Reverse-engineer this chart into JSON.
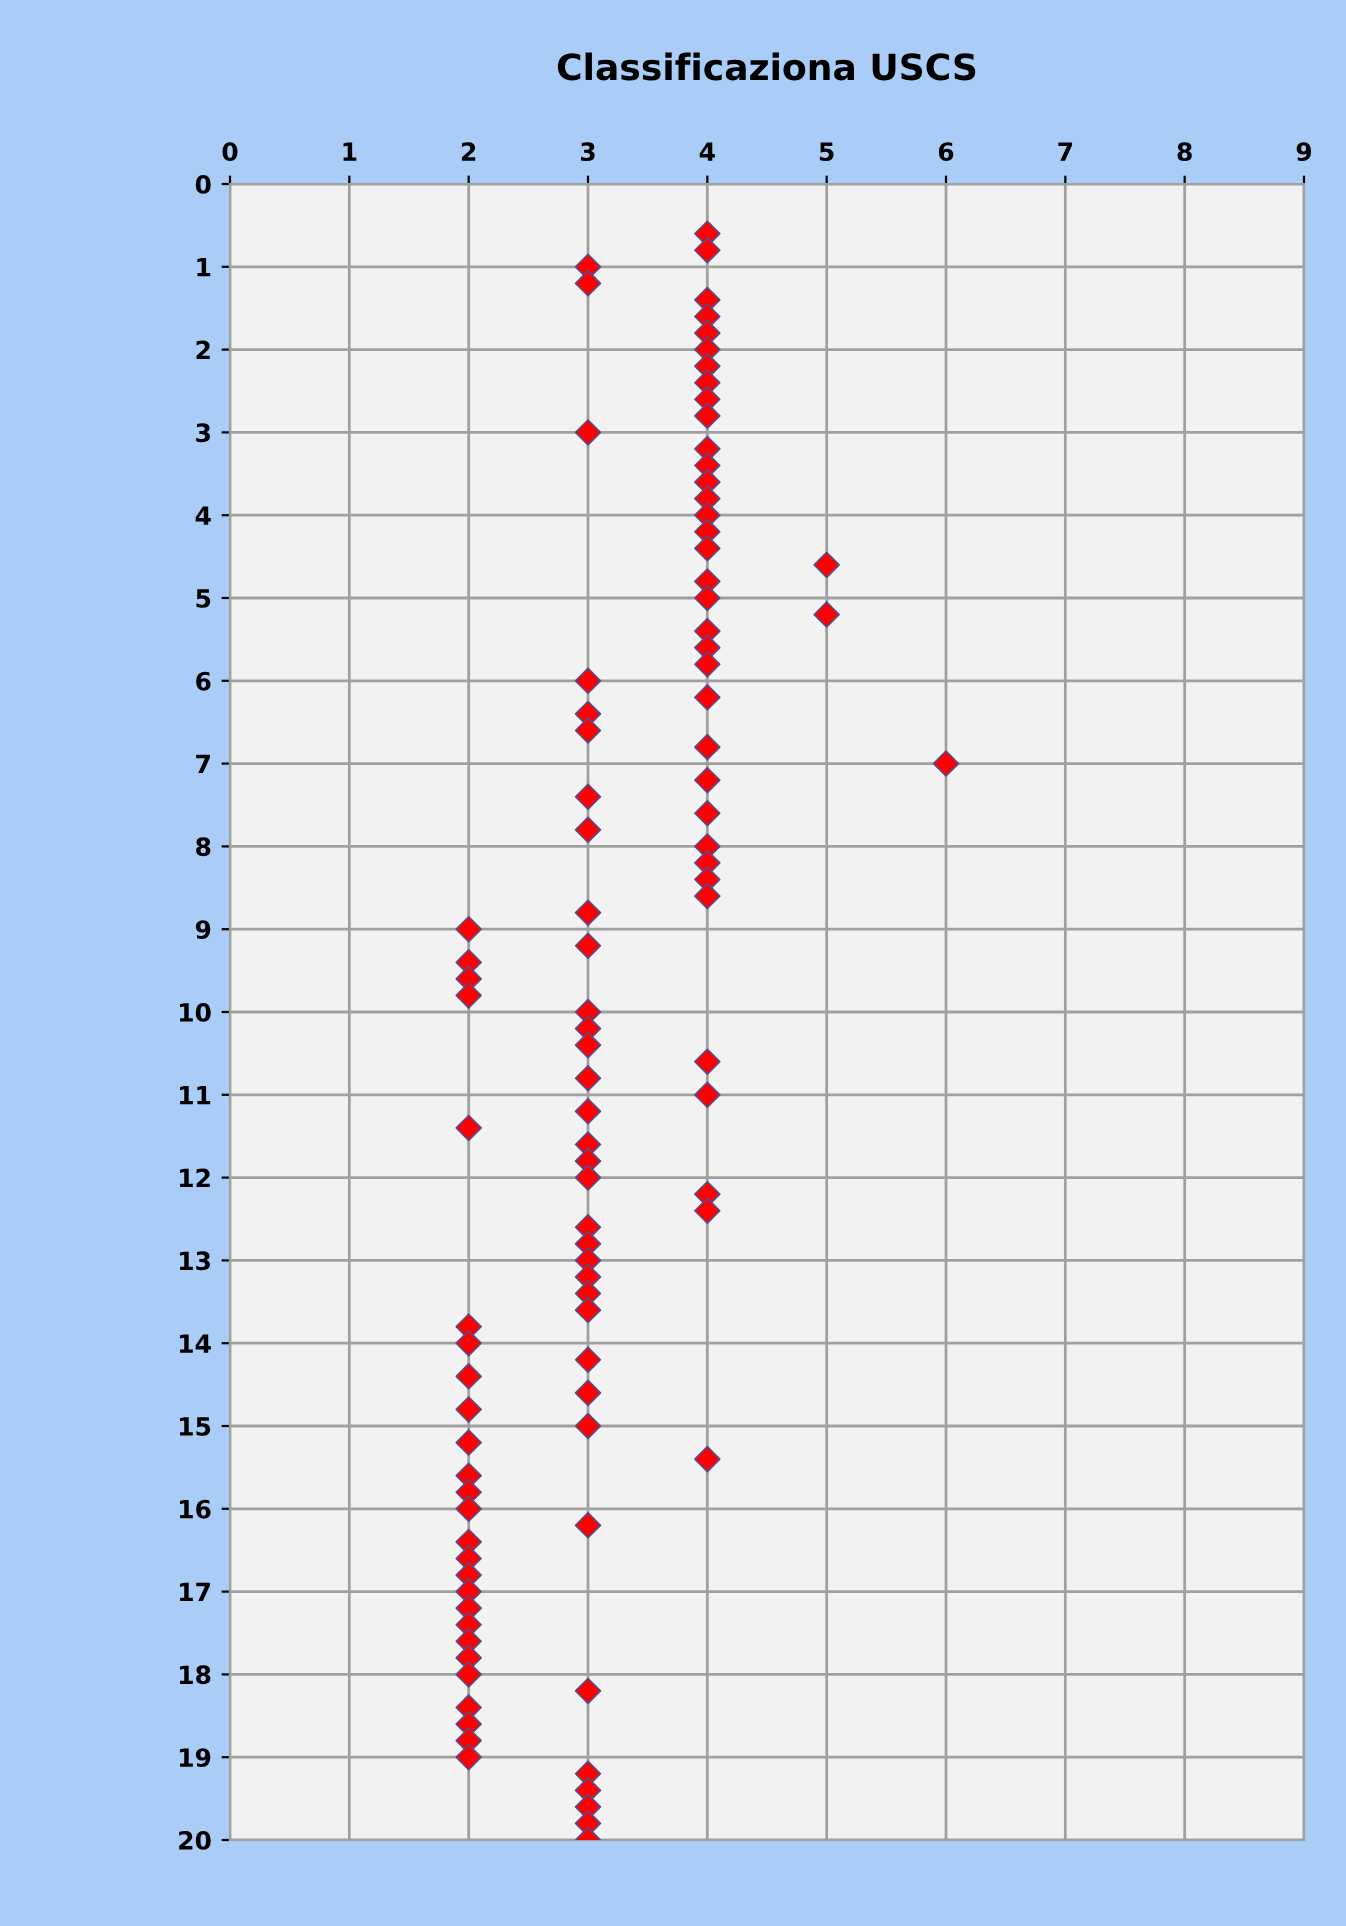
{
  "chart_data": {
    "type": "scatter",
    "title": "Classificaziona USCS",
    "series": [
      {
        "color": "#ff0000",
        "x": [
          4,
          4,
          4,
          4,
          4,
          4,
          4,
          4,
          4,
          4,
          4,
          4,
          4,
          4,
          4,
          4,
          4,
          4,
          4,
          4,
          4,
          4,
          4,
          4,
          4,
          4,
          4,
          4,
          4,
          4,
          4,
          4,
          4,
          4,
          4,
          5,
          5,
          6,
          3,
          3,
          3,
          3,
          3,
          3,
          3,
          3,
          3,
          3,
          3,
          3,
          3,
          3,
          3,
          3,
          3,
          3,
          3,
          3,
          3,
          3,
          3,
          3,
          3,
          3,
          3,
          3,
          3,
          3,
          3,
          3,
          3,
          3,
          2,
          2,
          2,
          2,
          2,
          2,
          2,
          2,
          2,
          2,
          2,
          2,
          2,
          2,
          2,
          2,
          2,
          2,
          2,
          2,
          2,
          2,
          2,
          2,
          2,
          2
        ],
        "values": [
          0.6,
          0.8,
          1.4,
          1.6,
          1.8,
          2.0,
          2.2,
          2.4,
          2.6,
          2.8,
          3.2,
          3.4,
          3.6,
          3.8,
          4.0,
          4.2,
          4.4,
          4.8,
          5.0,
          5.4,
          5.6,
          5.8,
          6.2,
          6.8,
          7.2,
          7.6,
          8.0,
          8.2,
          8.4,
          8.6,
          10.6,
          11.0,
          12.2,
          12.4,
          15.4,
          4.6,
          5.2,
          7.0,
          1.0,
          1.2,
          3.0,
          6.0,
          6.4,
          6.6,
          7.4,
          7.8,
          8.8,
          9.2,
          10.0,
          10.2,
          10.4,
          10.8,
          11.2,
          11.6,
          11.8,
          12.0,
          12.6,
          12.8,
          13.0,
          13.2,
          13.4,
          13.6,
          14.2,
          14.6,
          15.0,
          16.2,
          18.2,
          19.2,
          19.4,
          19.6,
          19.8,
          20.0,
          9.0,
          9.4,
          9.6,
          9.8,
          11.4,
          13.8,
          14.0,
          14.4,
          14.8,
          15.2,
          15.6,
          15.8,
          16.0,
          16.4,
          16.6,
          16.8,
          17.0,
          17.2,
          17.4,
          17.6,
          17.8,
          18.0,
          18.4,
          18.6,
          18.8,
          19.0
        ]
      }
    ],
    "xlim": [
      0,
      9
    ],
    "xticks": [
      0,
      1,
      2,
      3,
      4,
      5,
      6,
      7,
      8,
      9
    ],
    "ylim": [
      20,
      0
    ],
    "yticks": [
      0,
      1,
      2,
      3,
      4,
      5,
      6,
      7,
      8,
      9,
      10,
      11,
      12,
      13,
      14,
      15,
      16,
      17,
      18,
      19,
      20
    ],
    "grid": true,
    "marker": "diamond",
    "legend": false
  }
}
